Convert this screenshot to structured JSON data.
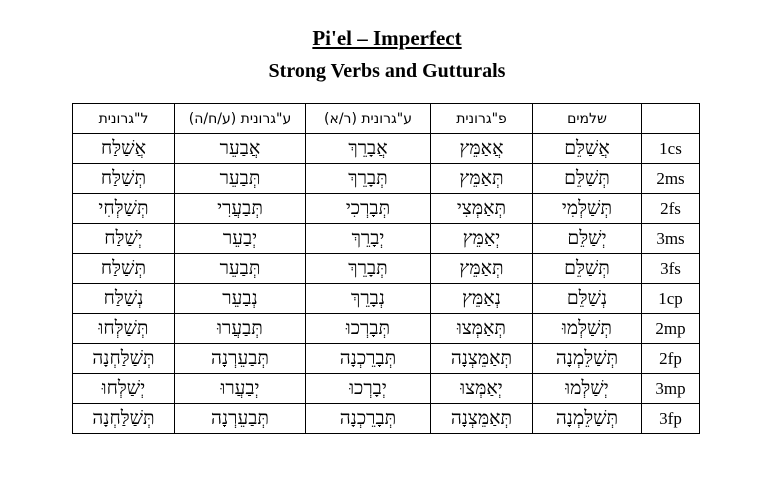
{
  "title": "Pi'el – Imperfect",
  "subtitle": "Strong Verbs and Gutturals",
  "table": {
    "headers": [
      "ל\"גרונית",
      "ע\"גרונית (ע/ח/ה)",
      "ע\"גרונית (ר/א)",
      "פ\"גרונית",
      "שלמים",
      ""
    ],
    "rows": [
      {
        "pgn": "1cs",
        "forms": [
          "אֲשַׁלַּח",
          "אֲבַעֵר",
          "אֲבָרֵךְ",
          "אֲאַמֵּץ",
          "אֲשַׁלֵּם"
        ]
      },
      {
        "pgn": "2ms",
        "forms": [
          "תְּשַׁלַּח",
          "תְּבַעֵר",
          "תְּבָרֵךְ",
          "תְּאַמֵּץ",
          "תְּשַׁלֵּם"
        ]
      },
      {
        "pgn": "2fs",
        "forms": [
          "תְּשַׁלְּחִי",
          "תְּבַעֲרִי",
          "תְּבָרְכִי",
          "תְּאַמְּצִי",
          "תְּשַׁלְּמִי"
        ]
      },
      {
        "pgn": "3ms",
        "forms": [
          "יְשַׁלַּח",
          "יְבַעֵר",
          "יְבָרֵךְ",
          "יְאַמֵּץ",
          "יְשַׁלֵּם"
        ]
      },
      {
        "pgn": "3fs",
        "forms": [
          "תְּשַׁלַּח",
          "תְּבַעֵר",
          "תְּבָרֵךְ",
          "תְּאַמֵּץ",
          "תְּשַׁלֵּם"
        ]
      },
      {
        "pgn": "1cp",
        "forms": [
          "נְשַׁלַּח",
          "נְבַעֵר",
          "נְבָרֵךְ",
          "נְאַמֵּץ",
          "נְשַׁלֵּם"
        ]
      },
      {
        "pgn": "2mp",
        "forms": [
          "תְּשַׁלְּחוּ",
          "תְּבַעֲרוּ",
          "תְּבָרְכוּ",
          "תְּאַמְּצוּ",
          "תְּשַׁלְּמוּ"
        ]
      },
      {
        "pgn": "2fp",
        "forms": [
          "תְּשַׁלַּחְנָה",
          "תְּבַעֵרְנָה",
          "תְּבָרֵכְנָה",
          "תְּאַמֵּצְנָה",
          "תְּשַׁלֵּמְנָה"
        ]
      },
      {
        "pgn": "3mp",
        "forms": [
          "יְשַׁלְּחוּ",
          "יְבַעֲרוּ",
          "יְבָרְכוּ",
          "יְאַמְּצוּ",
          "יְשַׁלְּמוּ"
        ]
      },
      {
        "pgn": "3fp",
        "forms": [
          "תְּשַׁלַּחְנָה",
          "תְּבַעֵרְנָה",
          "תְּבָרֵכְנָה",
          "תְּאַמֵּצְנָה",
          "תְּשַׁלֵּמְנָה"
        ]
      }
    ]
  }
}
